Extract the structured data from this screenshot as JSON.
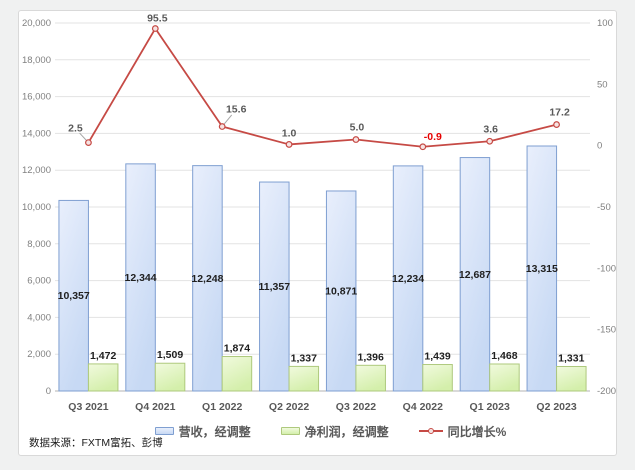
{
  "source_note": "数据来源：FXTM富拓、彭博",
  "chart_data": {
    "type": "bar",
    "subtype": "combo-bar-line-dual-axis",
    "categories": [
      "Q3 2021",
      "Q4 2021",
      "Q1 2022",
      "Q2 2022",
      "Q3 2022",
      "Q4 2022",
      "Q1 2023",
      "Q2 2023"
    ],
    "series": [
      {
        "name": "营收，经调整",
        "type": "bar",
        "axis": "left",
        "values": [
          10357,
          12344,
          12248,
          11357,
          10871,
          12234,
          12687,
          13315
        ],
        "fill_top": "#e9effc",
        "fill_bottom": "#c7d9f4",
        "border": "#7f9fd1",
        "label_position": "inside-center"
      },
      {
        "name": "净利润，经调整",
        "type": "bar",
        "axis": "left",
        "values": [
          1472,
          1509,
          1874,
          1337,
          1396,
          1439,
          1468,
          1331
        ],
        "fill_top": "#f1fade",
        "fill_bottom": "#d4efab",
        "border": "#aec97d",
        "label_position": "outside-top"
      },
      {
        "name": "同比增长%",
        "type": "line",
        "axis": "right",
        "values": [
          2.5,
          95.5,
          15.6,
          1.0,
          5.0,
          -0.9,
          3.6,
          17.2
        ],
        "color": "#c64a45",
        "marker_fill": "#f6e3e2",
        "label_color": "#595959",
        "negative_label_color": "#e60000"
      }
    ],
    "left_axis": {
      "min": 0,
      "max": 20000,
      "step": 2000
    },
    "right_axis": {
      "min": -200,
      "max": 100,
      "step": 50
    },
    "grid": true,
    "legend_position": "bottom",
    "colors": {
      "grid_line": "#e3e3e3",
      "x_axis_line": "#b3b3b3",
      "tick_label": "#808080",
      "category_label": "#595959",
      "bar_value_label": "#1f1f1f",
      "leader_line": "#a6a6a6"
    },
    "line_label_offsets": [
      [
        -13,
        -14,
        true
      ],
      [
        2,
        -10,
        false
      ],
      [
        14,
        -17,
        true
      ],
      [
        0,
        -11,
        false
      ],
      [
        1,
        -12,
        false
      ],
      [
        10,
        -10,
        false
      ],
      [
        1,
        -12,
        false
      ],
      [
        3,
        -12,
        false
      ]
    ]
  }
}
